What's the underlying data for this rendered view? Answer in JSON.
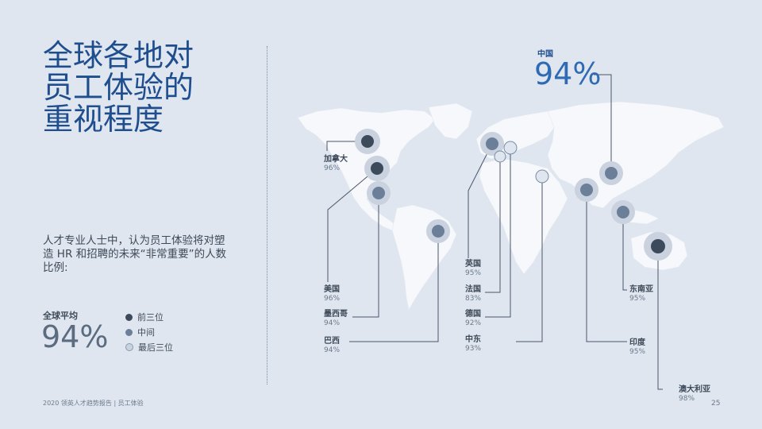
{
  "page": {
    "title_lines": [
      "全球各地对",
      "员工体验的",
      "重视程度"
    ],
    "description": "人才专业人士中，认为员工体验将对塑造 HR 和招聘的未来“非常重要”的人数比例:",
    "global_avg_label": "全球平均",
    "global_avg_value": "94%",
    "legend": [
      {
        "label": "前三位",
        "color": "#3d4a5c"
      },
      {
        "label": "中间",
        "color": "#6b7f99"
      },
      {
        "label": "最后三位",
        "color": "#c9d3df"
      }
    ],
    "footer": "2020 领英人才趋势报告 | 员工体验",
    "page_number": "25"
  },
  "highlight": {
    "name": "中国",
    "value": "94%"
  },
  "countries": [
    {
      "name": "加拿大",
      "value": "96%",
      "tier": "top"
    },
    {
      "name": "美国",
      "value": "96%",
      "tier": "top"
    },
    {
      "name": "墨西哥",
      "value": "94%",
      "tier": "middle"
    },
    {
      "name": "巴西",
      "value": "94%",
      "tier": "middle"
    },
    {
      "name": "英国",
      "value": "95%",
      "tier": "middle"
    },
    {
      "name": "法国",
      "value": "83%",
      "tier": "bottom"
    },
    {
      "name": "德国",
      "value": "92%",
      "tier": "bottom"
    },
    {
      "name": "中东",
      "value": "93%",
      "tier": "bottom"
    },
    {
      "name": "东南亚",
      "value": "95%",
      "tier": "middle"
    },
    {
      "name": "印度",
      "value": "95%",
      "tier": "middle"
    },
    {
      "name": "澳大利亚",
      "value": "98%",
      "tier": "top"
    },
    {
      "name": "中国",
      "value": "94%",
      "tier": "middle"
    }
  ]
}
